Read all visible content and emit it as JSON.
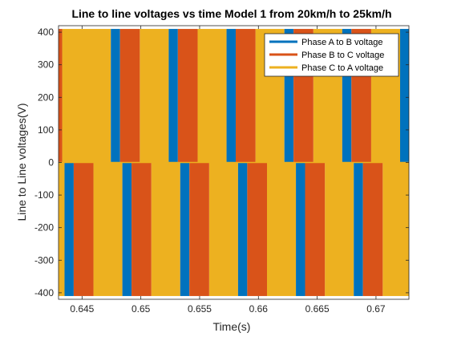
{
  "chart_data": {
    "type": "line",
    "title": "Line to line voltages vs time Model 1 from 20km/h to 25km/h",
    "xlabel": "Time(s)",
    "ylabel": "Line to Line voltages(V)",
    "xlim": [
      0.643,
      0.6728
    ],
    "ylim": [
      -420,
      420
    ],
    "xticks": [
      0.645,
      0.65,
      0.655,
      0.66,
      0.665,
      0.67
    ],
    "xtick_labels": [
      "0.645",
      "0.65",
      "0.655",
      "0.66",
      "0.665",
      "0.67"
    ],
    "yticks": [
      400,
      300,
      200,
      100,
      0,
      -100,
      -200,
      -300,
      -400
    ],
    "ytick_labels": [
      "400",
      "300",
      "200",
      "100",
      "0",
      "-100",
      "-200",
      "-300",
      "-400"
    ],
    "grid": false,
    "legend_position": "top-right",
    "amplitude_v": 410,
    "series": [
      {
        "name": "Phase A to B voltage",
        "color": "#0072BD",
        "positive_intervals": [
          [
            0.64745,
            0.64823
          ],
          [
            0.65237,
            0.65315
          ],
          [
            0.65729,
            0.65807
          ],
          [
            0.66221,
            0.66299
          ],
          [
            0.66713,
            0.66791
          ],
          [
            0.67205,
            0.6728
          ]
        ],
        "negative_intervals": [
          [
            0.64351,
            0.64429
          ],
          [
            0.64843,
            0.64921
          ],
          [
            0.65335,
            0.65413
          ],
          [
            0.65827,
            0.65905
          ],
          [
            0.66319,
            0.66397
          ],
          [
            0.66811,
            0.66889
          ]
        ]
      },
      {
        "name": "Phase B to C voltage",
        "color": "#D95319",
        "positive_intervals": [
          [
            0.643,
            0.64331
          ],
          [
            0.64823,
            0.64991
          ],
          [
            0.65315,
            0.65483
          ],
          [
            0.65807,
            0.65975
          ],
          [
            0.66299,
            0.66467
          ],
          [
            0.66791,
            0.66959
          ]
        ],
        "negative_intervals": [
          [
            0.64429,
            0.64597
          ],
          [
            0.64921,
            0.65089
          ],
          [
            0.65413,
            0.65581
          ],
          [
            0.65905,
            0.66073
          ],
          [
            0.66397,
            0.66565
          ],
          [
            0.66889,
            0.67057
          ]
        ]
      },
      {
        "name": "Phase C to A voltage",
        "color": "#EDB120",
        "positive_intervals": [
          [
            0.64331,
            0.64745
          ],
          [
            0.64991,
            0.65237
          ],
          [
            0.65483,
            0.65729
          ],
          [
            0.65975,
            0.66221
          ],
          [
            0.66467,
            0.66713
          ],
          [
            0.66959,
            0.67205
          ]
        ],
        "negative_intervals": [
          [
            0.643,
            0.64351
          ],
          [
            0.64597,
            0.64843
          ],
          [
            0.65089,
            0.65335
          ],
          [
            0.65581,
            0.65827
          ],
          [
            0.66073,
            0.66319
          ],
          [
            0.66565,
            0.66811
          ],
          [
            0.67057,
            0.6728
          ]
        ]
      }
    ]
  }
}
